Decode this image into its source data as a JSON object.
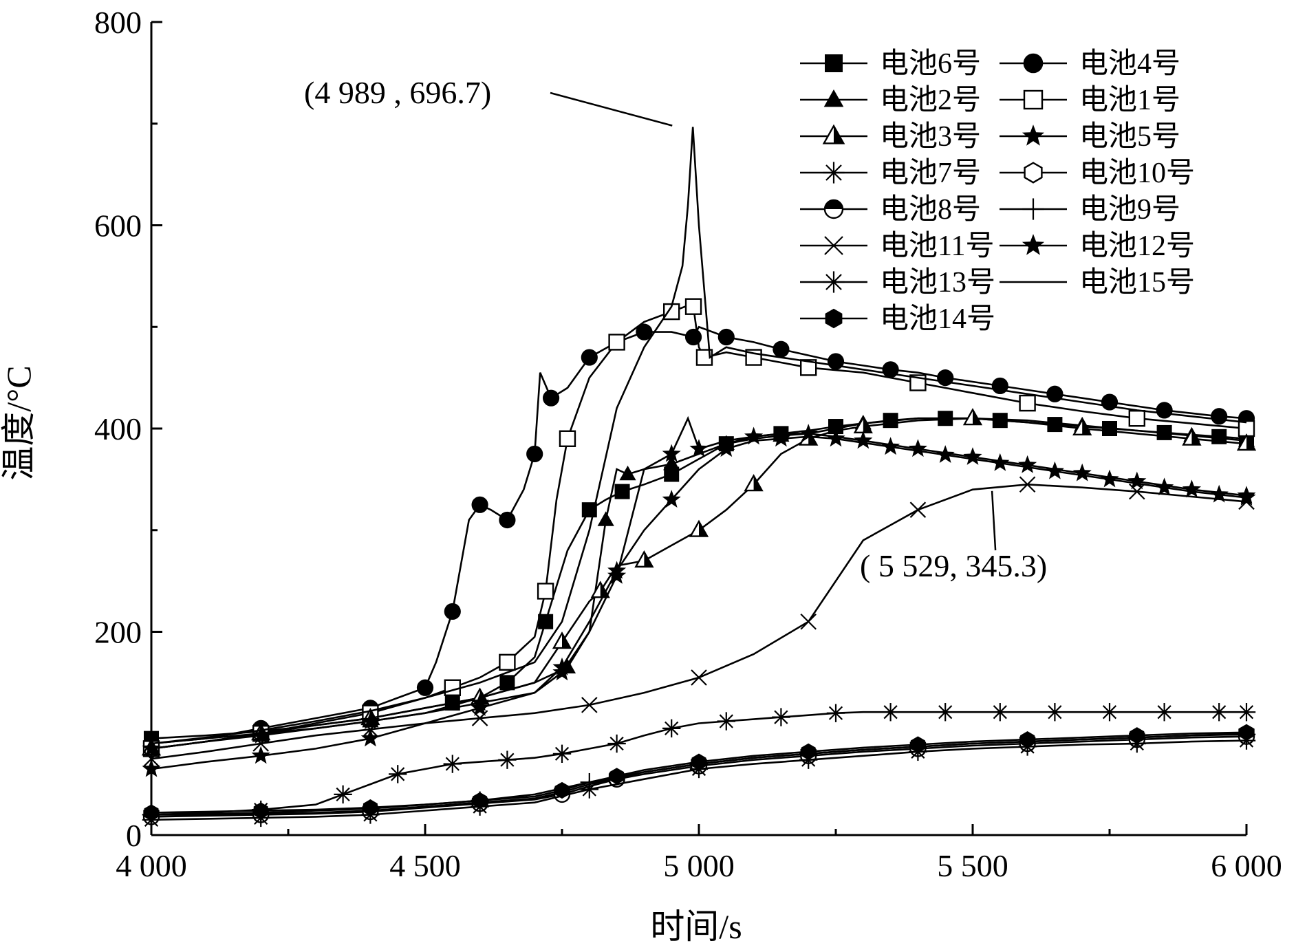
{
  "chart_data": {
    "type": "line",
    "title": "",
    "xlabel": "时间/s",
    "ylabel": "温度/°C",
    "xlim": [
      4000,
      6000
    ],
    "ylim": [
      0,
      800
    ],
    "xticks": [
      4000,
      4500,
      5000,
      5500,
      6000
    ],
    "xtick_labels": [
      "4 000",
      "4 500",
      "5 000",
      "5 500",
      "6 000"
    ],
    "yticks": [
      0,
      200,
      400,
      600,
      800
    ],
    "ytick_labels": [
      "0",
      "200",
      "400",
      "600",
      "800"
    ],
    "legend_position": "top-right",
    "annotations": [
      {
        "text": "(4 989 , 696.7)",
        "x": 4989,
        "y": 696.7
      },
      {
        "text": "( 5 529, 345.3)",
        "x": 5529,
        "y": 345.3
      }
    ],
    "series": [
      {
        "name": "电池6号",
        "marker": "square-filled",
        "x": [
          4000,
          4100,
          4200,
          4300,
          4400,
          4500,
          4550,
          4600,
          4650,
          4700,
          4720,
          4760,
          4800,
          4830,
          4860,
          4900,
          4950,
          5000,
          5050,
          5100,
          5150,
          5200,
          5250,
          5300,
          5350,
          5400,
          5450,
          5500,
          5550,
          5600,
          5650,
          5700,
          5750,
          5800,
          5850,
          5900,
          5950,
          6000
        ],
        "y": [
          95,
          98,
          102,
          108,
          115,
          125,
          130,
          135,
          150,
          175,
          210,
          280,
          320,
          330,
          338,
          345,
          355,
          370,
          385,
          392,
          395,
          398,
          402,
          405,
          408,
          410,
          410,
          410,
          408,
          406,
          404,
          402,
          400,
          398,
          396,
          394,
          392,
          390
        ]
      },
      {
        "name": "电池4号",
        "marker": "circle-filled",
        "x": [
          4000,
          4100,
          4200,
          4300,
          4400,
          4450,
          4500,
          4520,
          4550,
          4580,
          4600,
          4620,
          4650,
          4680,
          4700,
          4710,
          4730,
          4760,
          4800,
          4850,
          4900,
          4950,
          4990,
          5000,
          5050,
          5100,
          5150,
          5200,
          5250,
          5300,
          5350,
          5400,
          5450,
          5500,
          5550,
          5600,
          5650,
          5700,
          5750,
          5800,
          5850,
          5900,
          5950,
          6000
        ],
        "y": [
          90,
          95,
          105,
          115,
          125,
          135,
          145,
          170,
          220,
          310,
          325,
          320,
          310,
          340,
          375,
          455,
          430,
          440,
          470,
          485,
          495,
          495,
          490,
          500,
          490,
          485,
          478,
          472,
          466,
          462,
          458,
          455,
          450,
          446,
          442,
          438,
          434,
          430,
          426,
          422,
          418,
          415,
          412,
          410
        ]
      },
      {
        "name": "电池2号",
        "marker": "triangle-filled",
        "x": [
          4000,
          4100,
          4200,
          4300,
          4400,
          4500,
          4600,
          4700,
          4760,
          4800,
          4830,
          4850,
          4870,
          4900,
          4950,
          5000,
          5050,
          5100,
          5150,
          5200,
          5300,
          5400,
          5500,
          5600,
          5700,
          5800,
          5900,
          6000
        ],
        "y": [
          90,
          95,
          100,
          105,
          112,
          120,
          135,
          150,
          165,
          200,
          310,
          360,
          355,
          360,
          365,
          375,
          385,
          390,
          393,
          395,
          405,
          410,
          410,
          408,
          403,
          398,
          393,
          388
        ]
      },
      {
        "name": "电池1号",
        "marker": "square-open",
        "x": [
          4000,
          4100,
          4200,
          4300,
          4400,
          4500,
          4550,
          4600,
          4650,
          4700,
          4720,
          4740,
          4760,
          4800,
          4850,
          4900,
          4950,
          4975,
          4990,
          5000,
          5010,
          5050,
          5100,
          5150,
          5200,
          5300,
          5400,
          5500,
          5600,
          5700,
          5800,
          5900,
          6000
        ],
        "y": [
          85,
          92,
          100,
          110,
          120,
          135,
          145,
          155,
          170,
          195,
          240,
          330,
          390,
          450,
          485,
          505,
          515,
          520,
          520,
          480,
          470,
          475,
          470,
          465,
          460,
          455,
          445,
          435,
          425,
          417,
          410,
          405,
          400
        ]
      },
      {
        "name": "电池3号",
        "marker": "triangle-half",
        "x": [
          4000,
          4100,
          4200,
          4300,
          4400,
          4500,
          4600,
          4700,
          4750,
          4800,
          4820,
          4850,
          4900,
          4950,
          5000,
          5050,
          5100,
          5150,
          5200,
          5250,
          5300,
          5400,
          5500,
          5600,
          5700,
          5800,
          5900,
          6000
        ],
        "y": [
          85,
          92,
          100,
          108,
          115,
          125,
          135,
          150,
          190,
          230,
          240,
          265,
          270,
          285,
          300,
          320,
          345,
          375,
          390,
          398,
          402,
          408,
          410,
          406,
          400,
          395,
          390,
          385
        ]
      },
      {
        "name": "电池5号",
        "marker": "star-filled",
        "x": [
          4000,
          4100,
          4200,
          4300,
          4400,
          4500,
          4600,
          4700,
          4750,
          4800,
          4850,
          4900,
          4950,
          4980,
          5000,
          5050,
          5100,
          5150,
          5200,
          5250,
          5300,
          5350,
          5400,
          5450,
          5500,
          5550,
          5600,
          5650,
          5700,
          5750,
          5800,
          5850,
          5900,
          5950,
          6000
        ],
        "y": [
          85,
          92,
          98,
          105,
          112,
          120,
          130,
          140,
          160,
          200,
          255,
          360,
          375,
          410,
          380,
          388,
          392,
          395,
          395,
          392,
          388,
          384,
          380,
          376,
          372,
          368,
          364,
          360,
          356,
          352,
          348,
          344,
          340,
          337,
          334
        ]
      },
      {
        "name": "电池7号",
        "marker": "asterisk",
        "x": [
          4000,
          4100,
          4200,
          4300,
          4350,
          4400,
          4450,
          4500,
          4550,
          4600,
          4650,
          4700,
          4750,
          4800,
          4850,
          4900,
          4950,
          5000,
          5050,
          5100,
          5150,
          5200,
          5250,
          5300,
          5350,
          5400,
          5450,
          5500,
          5550,
          5600,
          5650,
          5700,
          5750,
          5800,
          5850,
          5900,
          5950,
          6000
        ],
        "y": [
          20,
          22,
          25,
          30,
          40,
          50,
          60,
          65,
          70,
          72,
          74,
          76,
          80,
          85,
          90,
          98,
          105,
          110,
          112,
          114,
          116,
          118,
          120,
          121,
          121,
          121,
          121,
          121,
          121,
          121,
          121,
          121,
          121,
          121,
          121,
          121,
          121,
          121
        ]
      },
      {
        "name": "电池10号",
        "marker": "hexagon-open",
        "x": [
          4000,
          4100,
          4200,
          4300,
          4400,
          4500,
          4600,
          4700,
          4750,
          4800,
          4850,
          4900,
          5000,
          5100,
          5200,
          5300,
          5400,
          5500,
          5600,
          5700,
          5800,
          5900,
          6000
        ],
        "y": [
          20,
          20,
          21,
          22,
          24,
          28,
          32,
          36,
          42,
          50,
          56,
          62,
          70,
          76,
          80,
          84,
          87,
          90,
          92,
          94,
          96,
          98,
          100
        ]
      },
      {
        "name": "电池8号",
        "marker": "circle-half",
        "x": [
          4000,
          4100,
          4200,
          4300,
          4400,
          4500,
          4600,
          4700,
          4750,
          4800,
          4850,
          4900,
          5000,
          5100,
          5200,
          5300,
          5400,
          5500,
          5600,
          5700,
          5800,
          5900,
          6000
        ],
        "y": [
          18,
          19,
          20,
          21,
          23,
          27,
          31,
          35,
          40,
          48,
          55,
          60,
          68,
          74,
          78,
          82,
          85,
          88,
          90,
          92,
          94,
          96,
          97
        ]
      },
      {
        "name": "电池9号",
        "marker": "plus",
        "x": [
          4000,
          4100,
          4200,
          4300,
          4400,
          4500,
          4600,
          4700,
          4800,
          4900,
          5000,
          5100,
          5200,
          5300,
          5400,
          5500,
          5600,
          5700,
          5800,
          5900,
          6000
        ],
        "y": [
          20,
          21,
          22,
          24,
          26,
          30,
          34,
          40,
          52,
          62,
          70,
          76,
          80,
          84,
          87,
          90,
          92,
          94,
          96,
          98,
          99
        ]
      },
      {
        "name": "电池11号",
        "marker": "x",
        "x": [
          4000,
          4100,
          4200,
          4300,
          4400,
          4500,
          4600,
          4700,
          4800,
          4900,
          5000,
          5100,
          5200,
          5300,
          5400,
          5500,
          5600,
          5700,
          5800,
          5900,
          6000
        ],
        "y": [
          75,
          82,
          90,
          98,
          104,
          110,
          115,
          120,
          128,
          140,
          155,
          178,
          210,
          290,
          320,
          340,
          345,
          342,
          338,
          333,
          328
        ]
      },
      {
        "name": "电池12号",
        "marker": "star-filled",
        "x": [
          4000,
          4100,
          4200,
          4300,
          4400,
          4500,
          4600,
          4700,
          4750,
          4800,
          4850,
          4900,
          4950,
          5000,
          5050,
          5100,
          5150,
          5200,
          5250,
          5300,
          5350,
          5400,
          5450,
          5500,
          5550,
          5600,
          5650,
          5700,
          5750,
          5800,
          5850,
          5900,
          5950,
          6000
        ],
        "y": [
          65,
          72,
          78,
          85,
          95,
          110,
          125,
          140,
          165,
          210,
          260,
          300,
          330,
          360,
          380,
          388,
          390,
          392,
          390,
          386,
          382,
          378,
          374,
          370,
          366,
          362,
          358,
          354,
          350,
          346,
          342,
          338,
          335,
          332
        ]
      },
      {
        "name": "电池13号",
        "marker": "asterisk",
        "x": [
          4000,
          4100,
          4200,
          4300,
          4400,
          4500,
          4600,
          4700,
          4800,
          4900,
          5000,
          5100,
          5200,
          5300,
          5400,
          5500,
          5600,
          5700,
          5800,
          5900,
          6000
        ],
        "y": [
          15,
          16,
          17,
          18,
          20,
          24,
          28,
          32,
          45,
          55,
          65,
          70,
          74,
          78,
          82,
          85,
          87,
          89,
          90,
          92,
          93
        ]
      },
      {
        "name": "电池15号",
        "marker": "none",
        "x": [
          4000,
          4100,
          4200,
          4300,
          4400,
          4500,
          4600,
          4700,
          4750,
          4800,
          4850,
          4900,
          4950,
          4970,
          4980,
          4989,
          5000,
          5020,
          5050,
          5100,
          5200,
          5300,
          5400,
          5500,
          5600,
          5700,
          5800,
          5900,
          6000
        ],
        "y": [
          90,
          96,
          103,
          112,
          122,
          135,
          150,
          170,
          210,
          300,
          420,
          480,
          520,
          560,
          620,
          696.7,
          600,
          470,
          480,
          474,
          466,
          458,
          450,
          442,
          434,
          426,
          418,
          412,
          406
        ]
      },
      {
        "name": "电池14号",
        "marker": "hexagon-filled",
        "x": [
          4000,
          4100,
          4200,
          4300,
          4400,
          4500,
          4600,
          4700,
          4750,
          4800,
          4850,
          4900,
          5000,
          5100,
          5200,
          5300,
          5400,
          5500,
          5600,
          5700,
          5800,
          5900,
          6000
        ],
        "y": [
          22,
          23,
          24,
          25,
          27,
          30,
          34,
          38,
          44,
          52,
          58,
          64,
          72,
          78,
          82,
          86,
          89,
          92,
          94,
          96,
          98,
          100,
          101
        ]
      }
    ]
  }
}
